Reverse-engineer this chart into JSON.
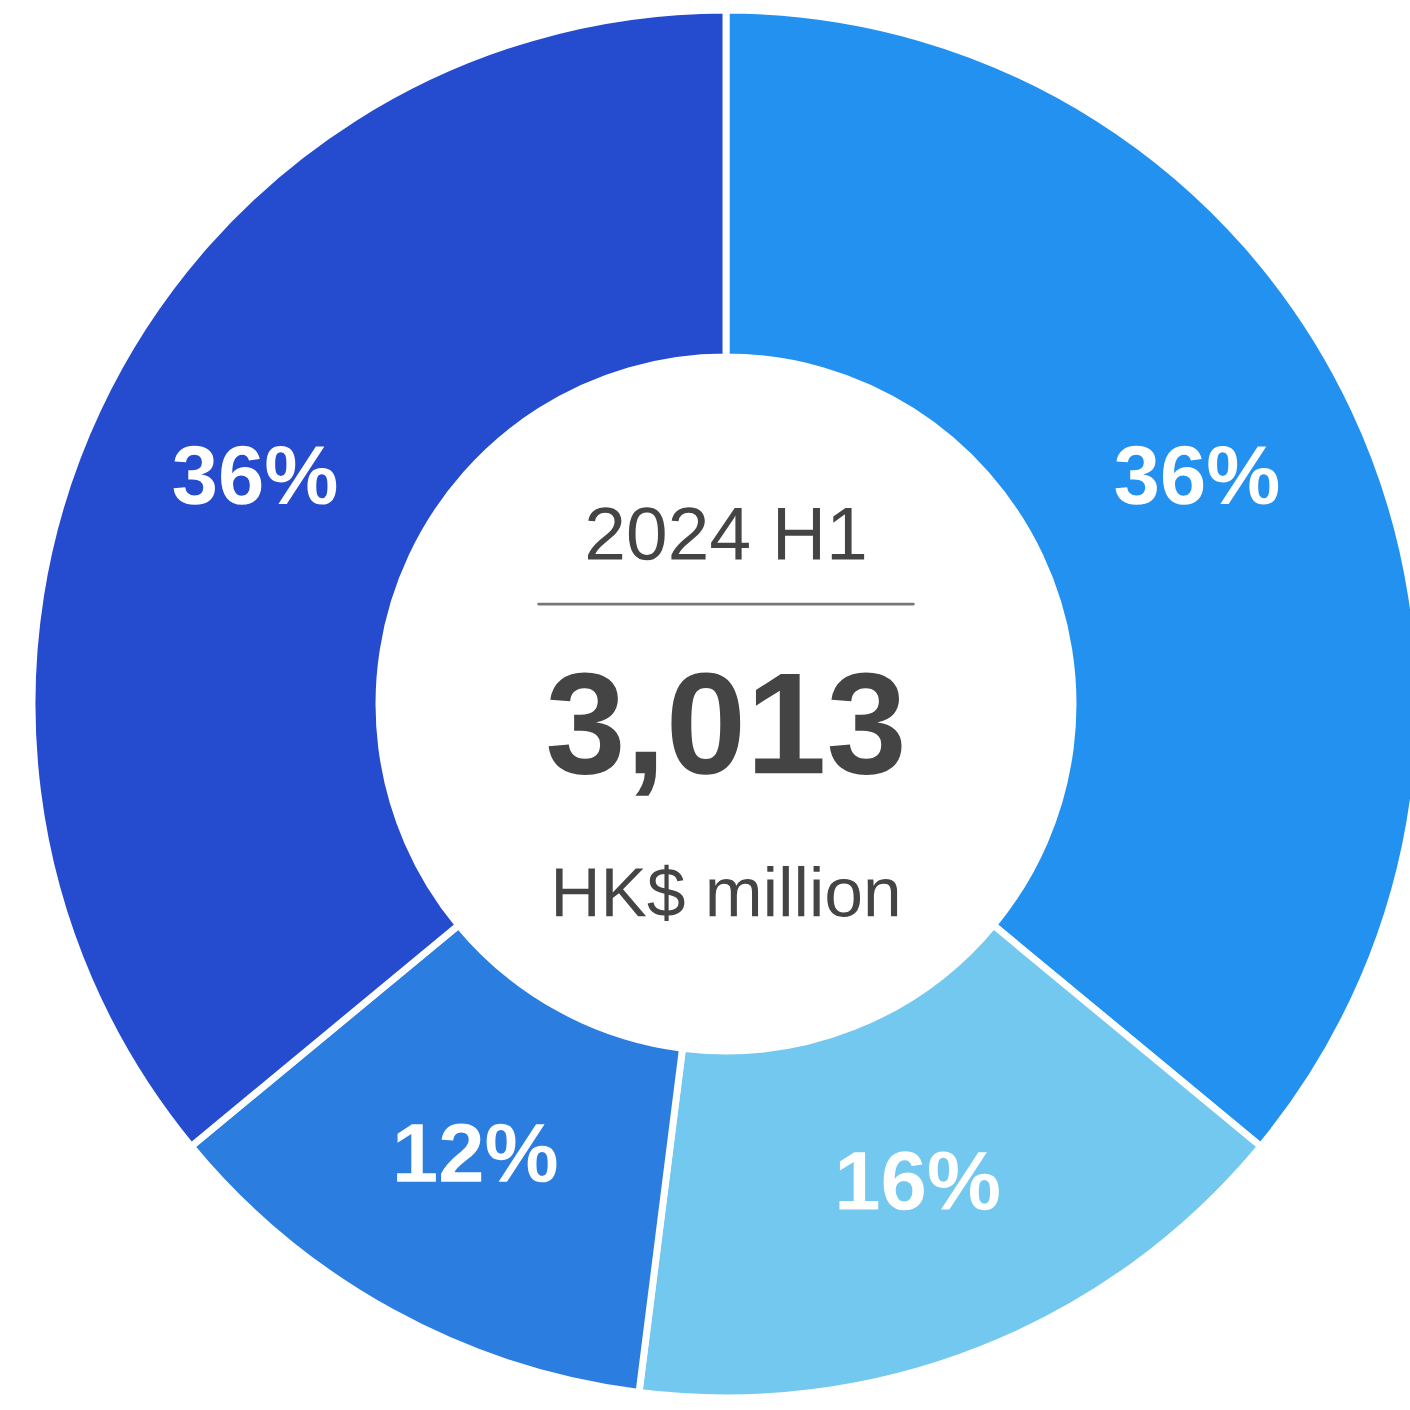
{
  "chart_data": {
    "type": "donut",
    "title": "2024 H1",
    "categories": [
      null,
      null,
      null,
      null
    ],
    "values": [
      36,
      16,
      12,
      36
    ],
    "value_labels": [
      "36%",
      "16%",
      "12%",
      "36%"
    ],
    "colors": [
      "#2391f0",
      "#72c8ef",
      "#2b7de0",
      "#254bcf"
    ],
    "annotations": [
      "3,013",
      "HK$ million"
    ]
  }
}
